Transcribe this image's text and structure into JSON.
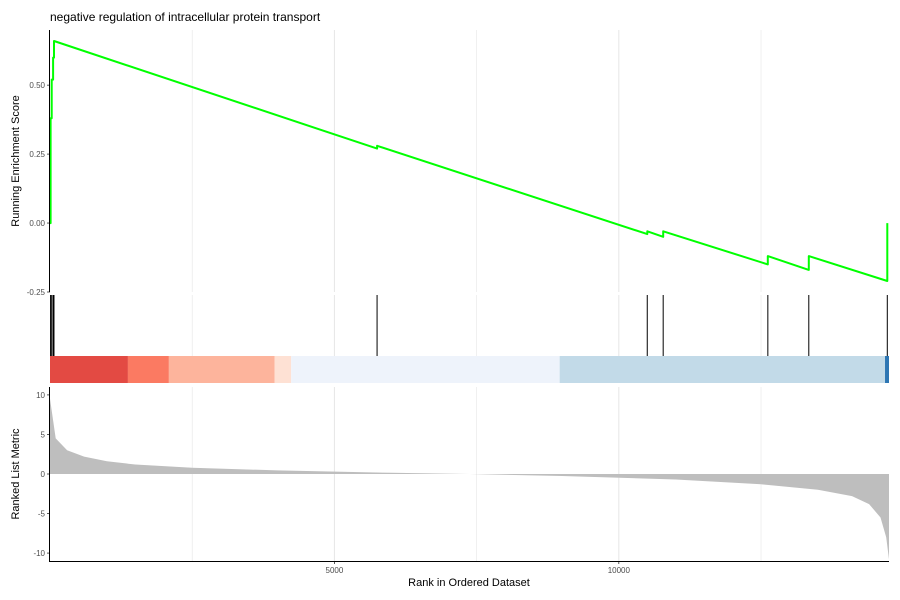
{
  "chart_data": {
    "type": "line",
    "title": "negative regulation of intracellular protein transport",
    "xlabel": "Rank in Ordered Dataset",
    "x_ticks": [
      5000,
      10000
    ],
    "xlim": [
      0,
      14750
    ],
    "grid": "major x gridlines only (grey)",
    "colors": {
      "es_line": "#00ff00",
      "hit_line": "#000000",
      "metric_fill": "#bebebe",
      "axis": "#000000"
    },
    "es_panel": {
      "ylabel": "Running Enrichment Score",
      "ylim": [
        -0.25,
        0.7
      ],
      "y_ticks": [
        0.5,
        0.25,
        0.0,
        -0.25
      ],
      "y_tick_labels": [
        "0.50",
        "0.25",
        "0.00",
        "-0.25"
      ],
      "series": [
        {
          "x": [
            0,
            10,
            10,
            30,
            30,
            55,
            55,
            70,
            70,
            5750,
            5750,
            10500,
            10500,
            10780,
            10780,
            12620,
            12620,
            13340,
            13340,
            14720,
            14720
          ],
          "y": [
            0,
            0,
            0.38,
            0.38,
            0.52,
            0.52,
            0.6,
            0.6,
            0.66,
            0.27,
            0.28,
            -0.04,
            -0.03,
            -0.05,
            -0.03,
            -0.15,
            -0.12,
            -0.17,
            -0.12,
            -0.21,
            0.0
          ]
        }
      ]
    },
    "hits": [
      10,
      30,
      55,
      70,
      5750,
      10500,
      10780,
      12620,
      13340,
      14720
    ],
    "rank_colorbar": [
      {
        "from": 0,
        "to": 1370,
        "color": "#e34a43"
      },
      {
        "from": 1370,
        "to": 2090,
        "color": "#fb7a62"
      },
      {
        "from": 2090,
        "to": 3950,
        "color": "#fdb49c"
      },
      {
        "from": 3950,
        "to": 4240,
        "color": "#fee1d4"
      },
      {
        "from": 4240,
        "to": 8960,
        "color": "#eef3fb"
      },
      {
        "from": 8960,
        "to": 14680,
        "color": "#c2dae8"
      },
      {
        "from": 14680,
        "to": 14750,
        "color": "#2d76b3"
      }
    ],
    "metric_panel": {
      "ylabel": "Ranked List Metric",
      "ylim": [
        -11,
        11
      ],
      "y_ticks": [
        10,
        5,
        0,
        -5,
        -10
      ],
      "series": [
        {
          "x": [
            0,
            100,
            300,
            600,
            1000,
            1500,
            2500,
            4000,
            6000,
            7375,
            9000,
            11000,
            12500,
            13500,
            14100,
            14400,
            14600,
            14700,
            14750
          ],
          "y": [
            9.5,
            4.5,
            3.0,
            2.2,
            1.6,
            1.2,
            0.8,
            0.45,
            0.15,
            0.0,
            -0.25,
            -0.7,
            -1.3,
            -2.0,
            -2.8,
            -3.8,
            -5.5,
            -8.0,
            -10.8
          ]
        }
      ]
    }
  }
}
